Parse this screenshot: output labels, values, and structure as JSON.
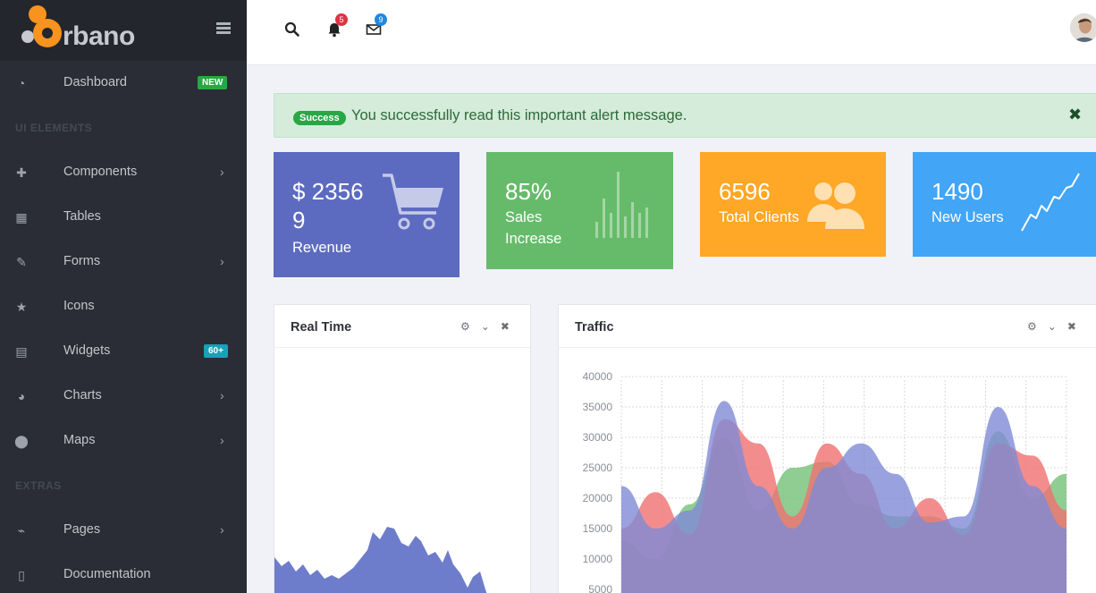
{
  "brand": {
    "name": "rbano",
    "accent": "#f7931e"
  },
  "sidebar": {
    "items": [
      {
        "label": "Dashboard",
        "icon": "dashboard-icon",
        "badge": "NEW"
      },
      {
        "label": "Components",
        "icon": "puzzle-icon"
      },
      {
        "label": "Tables",
        "icon": "table-icon"
      },
      {
        "label": "Forms",
        "icon": "edit-icon"
      },
      {
        "label": "Icons",
        "icon": "star-icon"
      },
      {
        "label": "Widgets",
        "icon": "calculator-icon",
        "badge": "60+"
      },
      {
        "label": "Charts",
        "icon": "pie-chart-icon"
      },
      {
        "label": "Maps",
        "icon": "map-marker-icon"
      },
      {
        "label": "Pages",
        "icon": "paperclip-icon"
      },
      {
        "label": "Documentation",
        "icon": "document-icon"
      }
    ],
    "sections": {
      "ui": "UI ELEMENTS",
      "extras": "EXTRAS"
    }
  },
  "topbar": {
    "notifications": "5",
    "messages": "9"
  },
  "alert": {
    "badge": "Success",
    "message": "You successfully read this important alert message."
  },
  "stats": {
    "revenue": {
      "value_line1": "$ 2356",
      "value_line2": "9",
      "label": "Revenue",
      "color": "#5c6bc0"
    },
    "sales": {
      "value": "85%",
      "label_line1": "Sales",
      "label_line2": "Increase",
      "color": "#66bb6a"
    },
    "clients": {
      "value": "6596",
      "label": "Total Clients",
      "color": "#ffa726"
    },
    "users": {
      "value": "1490",
      "label": "New Users",
      "color": "#42a5f5"
    }
  },
  "panels": {
    "realtime": "Real Time",
    "traffic": "Traffic"
  },
  "chart_data": {
    "type": "area",
    "title": "Traffic",
    "y_ticks": [
      "40000",
      "35000",
      "30000",
      "25000",
      "20000",
      "15000",
      "10000",
      "5000"
    ],
    "ylim": [
      0,
      40000
    ],
    "grid": true,
    "series": [
      {
        "color": "#7f8bd6",
        "values": [
          22000,
          15000,
          18000,
          36000,
          22000,
          15000,
          25000,
          29000,
          24000,
          16000,
          17000,
          35000,
          22000,
          15000
        ]
      },
      {
        "color": "#f07070",
        "values": [
          15000,
          21000,
          14000,
          33000,
          29000,
          17000,
          29000,
          24000,
          15000,
          20000,
          14000,
          29000,
          27000,
          18000
        ]
      },
      {
        "color": "#74c077",
        "values": [
          13000,
          10000,
          19000,
          30000,
          18000,
          25000,
          26000,
          19000,
          17000,
          17000,
          15000,
          31000,
          20000,
          24000
        ]
      }
    ]
  }
}
